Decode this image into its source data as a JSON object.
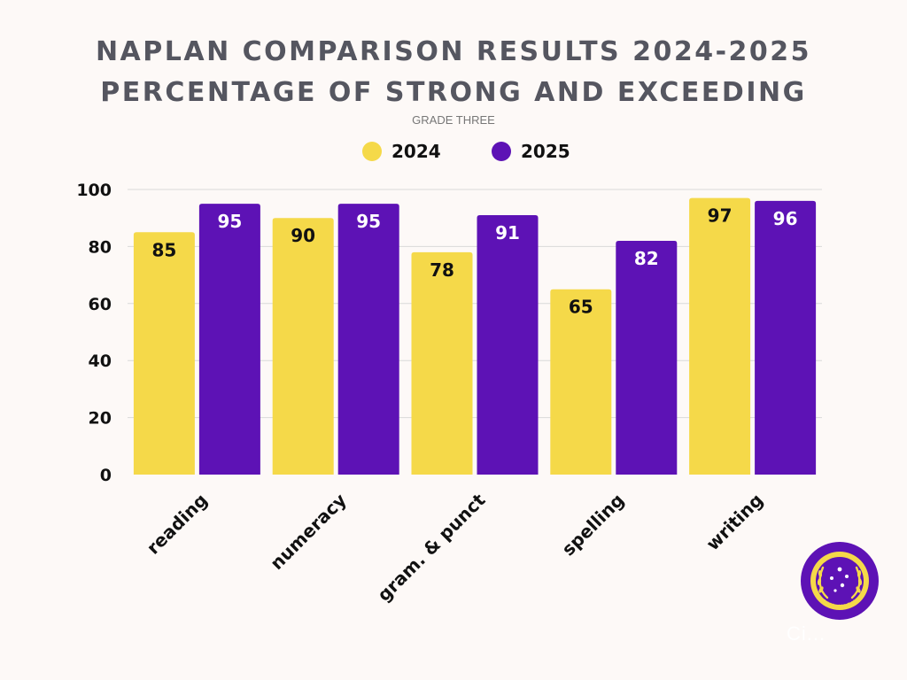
{
  "header": {
    "title_line1": "NAPLAN COMPARISON RESULTS 2024-2025",
    "title_line2": "PERCENTAGE OF STRONG AND EXCEEDING",
    "subtitle": "GRADE THREE"
  },
  "chart_data": {
    "type": "bar",
    "title": "NAPLAN COMPARISON RESULTS 2024-2025 PERCENTAGE OF STRONG AND EXCEEDING",
    "subtitle": "GRADE THREE",
    "categories": [
      "reading",
      "numeracy",
      "gram. & punct",
      "spelling",
      "writing"
    ],
    "series": [
      {
        "name": "2024",
        "values": [
          85,
          90,
          78,
          65,
          97
        ],
        "color": "#f5d949",
        "label_color": "#111111"
      },
      {
        "name": "2025",
        "values": [
          95,
          95,
          91,
          82,
          96
        ],
        "color": "#5d12b5",
        "label_color": "#ffffff"
      }
    ],
    "ylim": [
      0,
      100
    ],
    "yticks": [
      0,
      20,
      40,
      60,
      80,
      100
    ],
    "grid": true,
    "legend": "top-center",
    "xlabel": "",
    "ylabel": ""
  },
  "logo": {
    "ring_text": "AIM HIGH",
    "outer_color": "#5d12b5",
    "inner_color": "#f5d949"
  },
  "watermark": "Ci..."
}
